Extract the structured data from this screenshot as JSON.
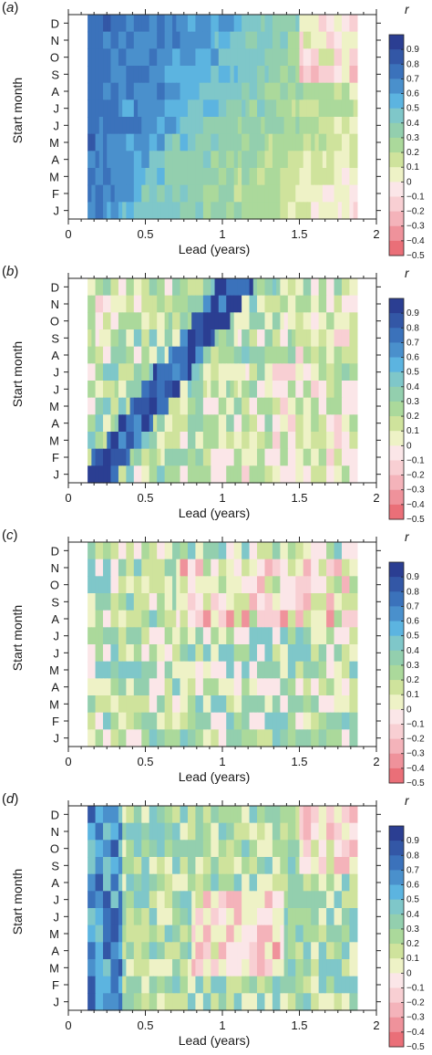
{
  "panels": [
    {
      "label": "a",
      "pattern": "a"
    },
    {
      "label": "b",
      "pattern": "b"
    },
    {
      "label": "c",
      "pattern": "c"
    },
    {
      "label": "d",
      "pattern": "d"
    }
  ],
  "colorbar_title": "r",
  "colorbar_ticks": [
    "0.9",
    "0.8",
    "0.7",
    "0.6",
    "0.5",
    "0.4",
    "0.3",
    "0.2",
    "0.1",
    "0",
    "−0.1",
    "−0.2",
    "−0.3",
    "−0.4",
    "−0.5"
  ],
  "colorbar_colors": [
    "#2b3e92",
    "#3357a6",
    "#3b72bb",
    "#4a90cc",
    "#5cb4e0",
    "#7fc7c9",
    "#93cfae",
    "#abd99b",
    "#cfe39c",
    "#eef2c6",
    "#fbe6e8",
    "#f8cfd3",
    "#f4b3ba",
    "#ef929b",
    "#ea6f78"
  ],
  "ylabel": "Start month",
  "xlabel": "Lead (years)",
  "month_labels": [
    "D",
    "N",
    "O",
    "S",
    "A",
    "J",
    "J",
    "M",
    "A",
    "M",
    "F",
    "J"
  ],
  "chart_data": {
    "type": "heatmap",
    "xlabel": "Lead (years)",
    "ylabel": "Start month",
    "xlim": [
      0,
      2
    ],
    "x_ticks": [
      "0",
      "0.5",
      "1",
      "1.5",
      "2"
    ],
    "data_x_range": [
      0.125,
      1.875
    ],
    "y_categories": [
      "D",
      "N",
      "O",
      "S",
      "A",
      "J",
      "J",
      "M",
      "A",
      "M",
      "F",
      "J"
    ],
    "colorbar": {
      "label": "r",
      "range": [
        -0.5,
        0.9
      ],
      "step": 0.1
    },
    "panels": [
      "a",
      "b",
      "c",
      "d"
    ]
  }
}
